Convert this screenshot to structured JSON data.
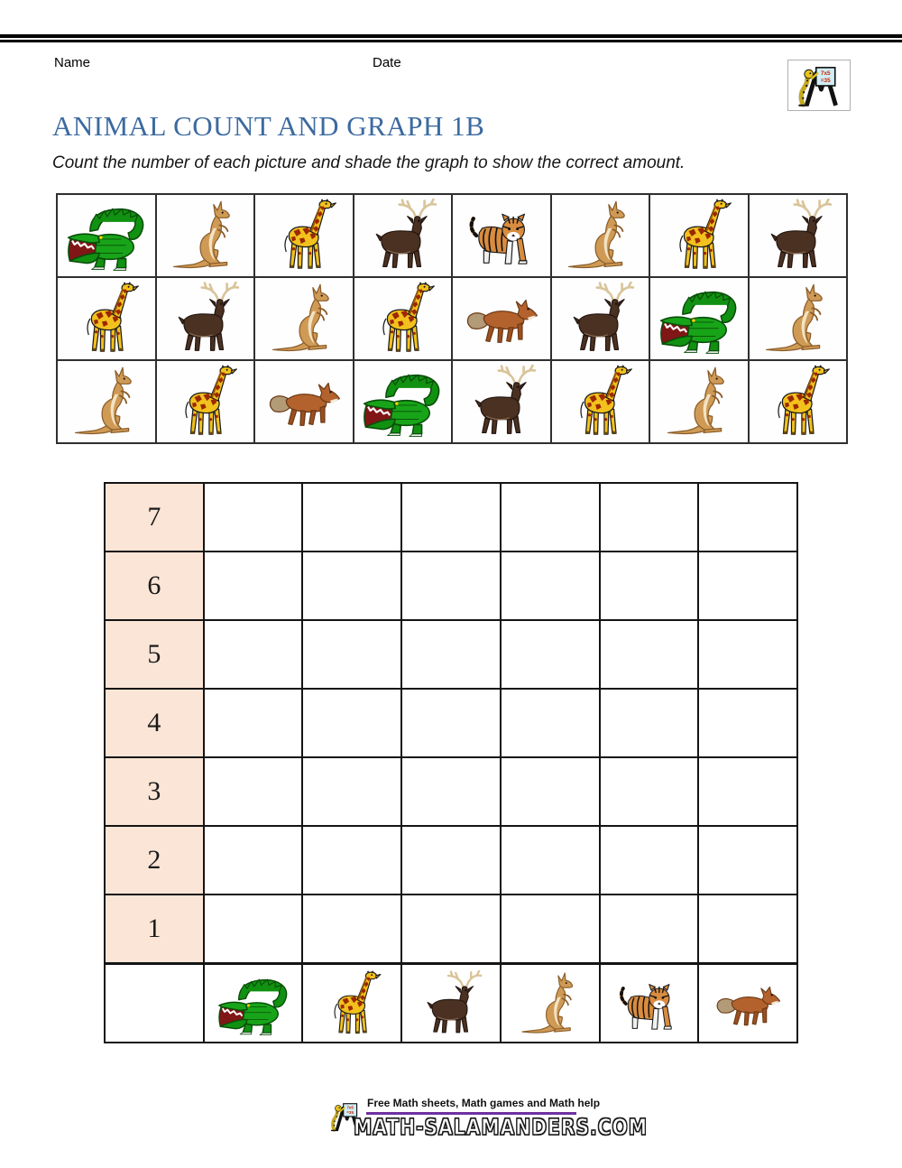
{
  "header": {
    "name_label": "Name",
    "date_label": "Date"
  },
  "logo": {
    "board_line1": "7x5",
    "board_line2": "=35"
  },
  "title": "ANIMAL COUNT AND GRAPH 1B",
  "instruction": "Count the number of each picture and shade the graph to show the correct amount.",
  "animal_grid": {
    "rows": [
      [
        "crocodile",
        "kangaroo",
        "giraffe",
        "deer",
        "tiger",
        "kangaroo",
        "giraffe",
        "deer"
      ],
      [
        "giraffe",
        "deer",
        "kangaroo",
        "giraffe",
        "fox",
        "deer",
        "crocodile",
        "kangaroo"
      ],
      [
        "kangaroo",
        "giraffe",
        "fox",
        "crocodile",
        "deer",
        "giraffe",
        "kangaroo",
        "giraffe"
      ]
    ]
  },
  "graph": {
    "row_labels": [
      "7",
      "6",
      "5",
      "4",
      "3",
      "2",
      "1"
    ],
    "columns": [
      "crocodile",
      "giraffe",
      "deer",
      "kangaroo",
      "tiger",
      "fox"
    ],
    "label_cell_color": "#fbe5d6"
  },
  "colors": {
    "title_blue": "#3b6aa0",
    "footer_purple": "#7030a0",
    "label_cell_peach": "#fbe5d6"
  },
  "footer": {
    "tagline": "Free Math sheets, Math games and Math help",
    "wordmark": "MATH-SALAMANDERS.COM"
  }
}
